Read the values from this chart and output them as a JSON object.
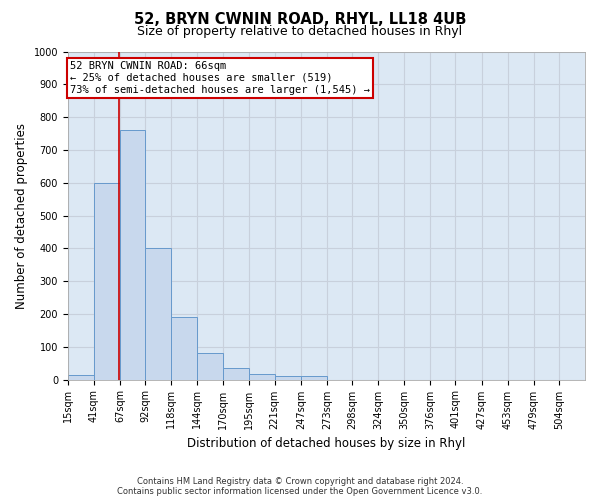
{
  "title": "52, BRYN CWNIN ROAD, RHYL, LL18 4UB",
  "subtitle": "Size of property relative to detached houses in Rhyl",
  "xlabel": "Distribution of detached houses by size in Rhyl",
  "ylabel": "Number of detached properties",
  "bar_edges": [
    15,
    41,
    67,
    92,
    118,
    144,
    170,
    195,
    221,
    247,
    273,
    298,
    324,
    350,
    376,
    401,
    427,
    453,
    479,
    504,
    530
  ],
  "bar_heights": [
    15,
    600,
    760,
    400,
    190,
    80,
    35,
    18,
    10,
    10,
    0,
    0,
    0,
    0,
    0,
    0,
    0,
    0,
    0,
    0
  ],
  "bar_color": "#c8d8ed",
  "bar_edgecolor": "#6699cc",
  "property_line_x": 66,
  "property_line_color": "#cc0000",
  "annotation_text": "52 BRYN CWNIN ROAD: 66sqm\n← 25% of detached houses are smaller (519)\n73% of semi-detached houses are larger (1,545) →",
  "annotation_box_color": "#cc0000",
  "annotation_fill": "#ffffff",
  "ylim_max": 1000,
  "yticks": [
    0,
    100,
    200,
    300,
    400,
    500,
    600,
    700,
    800,
    900,
    1000
  ],
  "grid_color": "#c8d0dc",
  "bg_color": "#dce8f4",
  "footer_line1": "Contains HM Land Registry data © Crown copyright and database right 2024.",
  "footer_line2": "Contains public sector information licensed under the Open Government Licence v3.0.",
  "title_fontsize": 10.5,
  "subtitle_fontsize": 9,
  "ylabel_fontsize": 8.5,
  "xlabel_fontsize": 8.5,
  "tick_label_fontsize": 7,
  "footer_fontsize": 6,
  "annot_fontsize": 7.5
}
